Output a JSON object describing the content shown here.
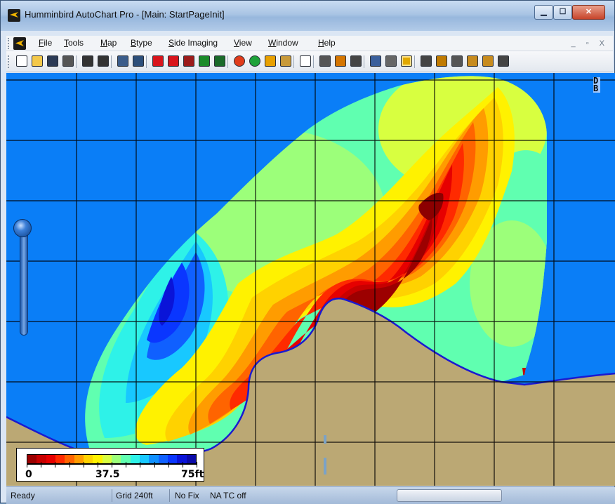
{
  "window": {
    "title": "Humminbird AutoChart Pro - [Main: StartPageInit]",
    "min_label": "▁",
    "max_label": "☐",
    "close_label": "✕"
  },
  "menu": {
    "items": [
      {
        "label": "File",
        "icon": ""
      },
      {
        "label": "Tools"
      },
      {
        "label": "Map"
      },
      {
        "label": "Btype"
      },
      {
        "label": "Side Imaging"
      },
      {
        "label": "View"
      },
      {
        "label": "Window"
      },
      {
        "label": "Help"
      }
    ],
    "mdi_controls": "_ ▫ X"
  },
  "toolbar": {
    "icons": [
      "new-icon",
      "open-icon",
      "save-icon",
      "print-icon",
      "zoom-in-icon",
      "zoom-out-icon",
      "page-icon",
      "profile-icon",
      "track-red-icon",
      "track-red-2-icon",
      "track-multi-icon",
      "track-green-icon",
      "track-edit-icon",
      "red-circle-icon",
      "green-circle-icon",
      "palette-icon",
      "cube-icon",
      "document-icon",
      "gear-icon",
      "marker-icon",
      "layers-icon",
      "table-icon",
      "slope-icon",
      "lines-icon",
      "grid-icon",
      "fish-icon",
      "contour-icon",
      "export-icon",
      "import-icon",
      "pencil-icon"
    ]
  },
  "map": {
    "grid_size": "Grid 240ft",
    "legend": {
      "min_label": "0",
      "mid_label": "37.5",
      "max_label": "75ft",
      "colors": [
        "#9c0000",
        "#c80000",
        "#e60000",
        "#ff2a00",
        "#ff6400",
        "#ff9c00",
        "#ffd200",
        "#fff200",
        "#d8ff40",
        "#9cff7a",
        "#60ffb0",
        "#2ef2e8",
        "#18c8ff",
        "#1090ff",
        "#1060ff",
        "#0a36ff",
        "#0a14d8",
        "#0a0aa8"
      ]
    },
    "logo_text": [
      "D",
      "B"
    ]
  },
  "status": {
    "ready": "Ready",
    "grid": "Grid 240ft",
    "fix": "No Fix",
    "tc": "NA  TC off"
  },
  "colors": {
    "water": "#0a7ef7",
    "land": "#bba874",
    "shoreline": "#1a1ad0"
  }
}
